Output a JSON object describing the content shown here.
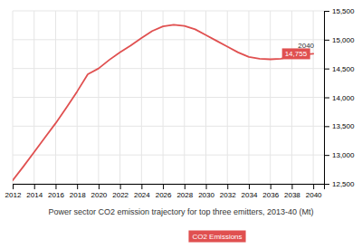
{
  "chart_data": {
    "type": "line",
    "title": "Power sector CO2 emission trajectory for top three emitters, 2013-40 (Mt)",
    "x": [
      2012,
      2013,
      2014,
      2015,
      2016,
      2017,
      2018,
      2019,
      2020,
      2021,
      2022,
      2023,
      2024,
      2025,
      2026,
      2027,
      2028,
      2029,
      2030,
      2031,
      2032,
      2033,
      2034,
      2035,
      2036,
      2037,
      2038,
      2039,
      2040
    ],
    "series": [
      {
        "name": "CO2 Emissions",
        "color": "#e05050",
        "values": [
          12560,
          12800,
          13050,
          13300,
          13550,
          13820,
          14100,
          14400,
          14500,
          14650,
          14780,
          14900,
          15030,
          15150,
          15230,
          15260,
          15240,
          15180,
          15080,
          14980,
          14880,
          14780,
          14700,
          14670,
          14660,
          14670,
          14720,
          14740,
          14755
        ]
      }
    ],
    "xlim": [
      2012,
      2041
    ],
    "ylim": [
      12500,
      15500
    ],
    "xticks": [
      2012,
      2014,
      2016,
      2018,
      2020,
      2022,
      2024,
      2026,
      2028,
      2030,
      2032,
      2034,
      2036,
      2038,
      2040
    ],
    "yticks": [
      {
        "value": 12500,
        "label": "12,500"
      },
      {
        "value": 13000,
        "label": "13,000"
      },
      {
        "value": 13500,
        "label": "13,500"
      },
      {
        "value": 14000,
        "label": "14,000"
      },
      {
        "value": 14500,
        "label": "14,500"
      },
      {
        "value": 15000,
        "label": "15,000"
      },
      {
        "value": 15500,
        "label": "15,500"
      }
    ],
    "grid": true,
    "legend": "bottom",
    "annotations": [
      {
        "text": "2040",
        "x": 2040,
        "y": 14755
      },
      {
        "text": "14,755",
        "x": 2040,
        "y": 14755
      }
    ]
  }
}
